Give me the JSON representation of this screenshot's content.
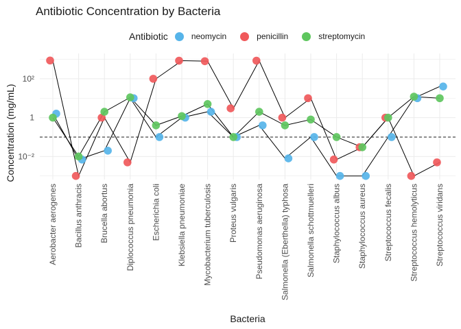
{
  "chart_data": {
    "type": "scatter",
    "title": "Antibiotic Concentration by Bacteria",
    "xlabel": "Bacteria",
    "ylabel": "Concentration (mg/mL)",
    "yscale": "log10",
    "ylim": [
      0.00065,
      2000
    ],
    "yticks": [
      0.01,
      1,
      100
    ],
    "ytick_labels": [
      "10⁻²",
      "1",
      "10²"
    ],
    "reference_line": {
      "value": 0.1,
      "style": "dashed"
    },
    "grid": true,
    "legend": {
      "title": "Antibiotic",
      "position": "top"
    },
    "categories": [
      "Aerobacter aerogenes",
      "Bacillus anthracis",
      "Brucella abortus",
      "Diplococcus pneumonia",
      "Escherichia coli",
      "Klebsiella pneumoniae",
      "Mycobacterium tuberculosis",
      "Proteus vulgaris",
      "Pseudomonas aeruginosa",
      "Salmonella (Eberthella) typhosa",
      "Salmonella schottmuelleri",
      "Staphylococcus albus",
      "Staphylococcus aureus",
      "Streptococcus fecalis",
      "Streptococcus hemolyticus",
      "Streptococcus viridans"
    ],
    "series": [
      {
        "name": "neomycin",
        "color": "#56B4E9",
        "values": [
          1.6,
          0.007,
          0.02,
          10,
          0.1,
          1,
          2,
          0.1,
          0.4,
          0.008,
          0.1,
          0.001,
          0.001,
          0.1,
          10,
          40
        ]
      },
      {
        "name": "penicillin",
        "color": "#F0595B",
        "values": [
          870,
          0.001,
          1,
          0.005,
          100,
          850,
          800,
          3,
          850,
          1,
          10,
          0.007,
          0.03,
          1,
          0.001,
          0.005
        ]
      },
      {
        "name": "streptomycin",
        "color": "#5EC65E",
        "values": [
          1,
          0.01,
          2,
          11,
          0.4,
          1.2,
          5,
          0.1,
          2,
          0.4,
          0.8,
          0.1,
          0.03,
          1,
          12,
          10
        ]
      }
    ]
  }
}
